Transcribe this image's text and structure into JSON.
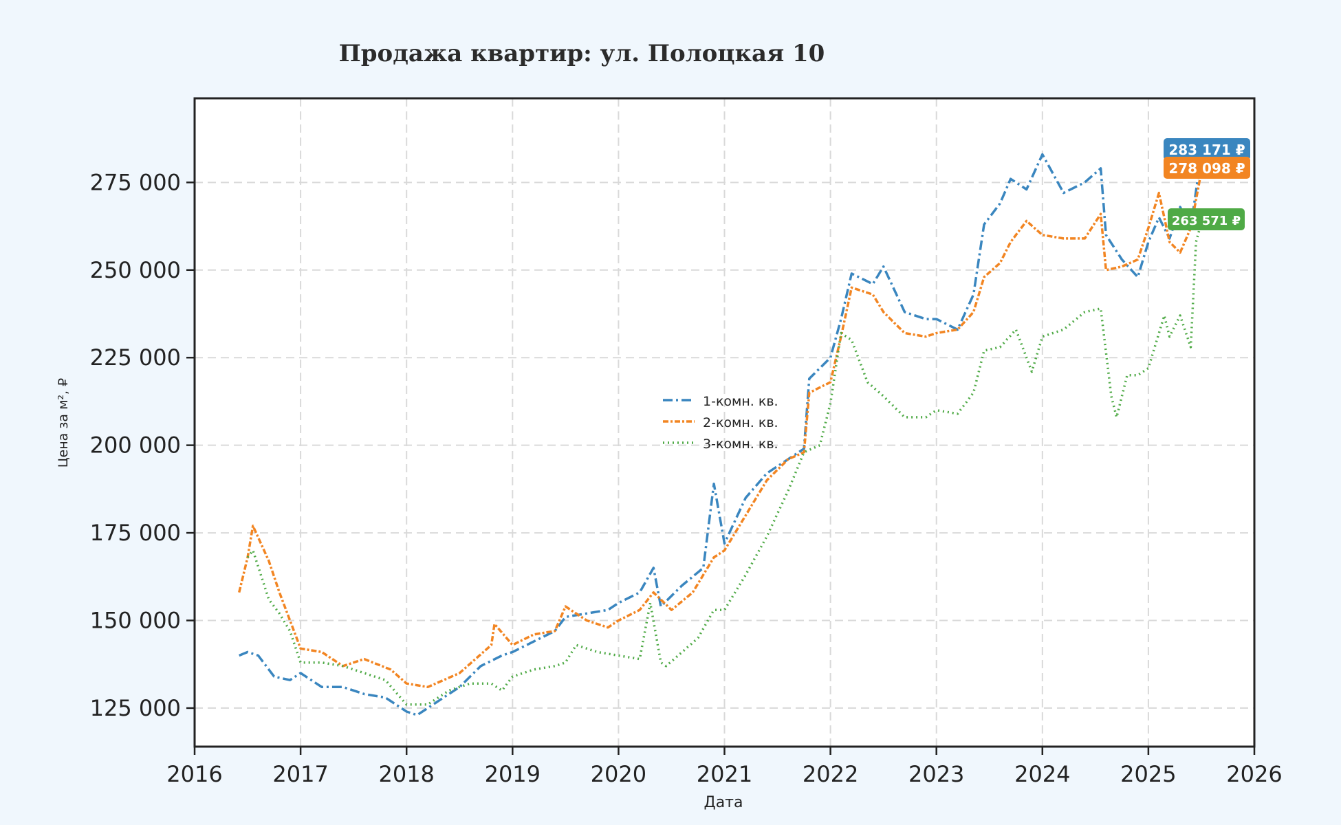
{
  "chart_data": {
    "type": "line",
    "title": "Продажа квартир: ул. Полоцкая 10",
    "xlabel": "Дата",
    "ylabel": "Цена за м², ₽",
    "xlim": [
      2016.0,
      2026.0
    ],
    "ylim": [
      114000,
      299000
    ],
    "x_ticks": [
      2016,
      2017,
      2018,
      2019,
      2020,
      2021,
      2022,
      2023,
      2024,
      2025,
      2026
    ],
    "x_tick_labels": [
      "2016",
      "2017",
      "2018",
      "2019",
      "2020",
      "2021",
      "2022",
      "2023",
      "2024",
      "2025",
      "2026"
    ],
    "y_ticks": [
      125000,
      150000,
      175000,
      200000,
      225000,
      250000,
      275000
    ],
    "y_tick_labels": [
      "125 000",
      "150 000",
      "175 000",
      "200 000",
      "225 000",
      "250 000",
      "275 000"
    ],
    "grid": true,
    "legend_position": "center",
    "series": [
      {
        "name": "1-комн. кв.",
        "color": "#3a86bf",
        "dash": "dashdot",
        "x": [
          2016.42,
          2016.5,
          2016.6,
          2016.75,
          2016.9,
          2017.0,
          2017.2,
          2017.4,
          2017.6,
          2017.8,
          2018.0,
          2018.1,
          2018.3,
          2018.5,
          2018.7,
          2018.9,
          2019.0,
          2019.2,
          2019.4,
          2019.5,
          2019.7,
          2019.9,
          2020.0,
          2020.2,
          2020.33,
          2020.4,
          2020.6,
          2020.8,
          2020.9,
          2021.0,
          2021.2,
          2021.4,
          2021.6,
          2021.75,
          2021.8,
          2022.0,
          2022.1,
          2022.2,
          2022.4,
          2022.5,
          2022.7,
          2022.9,
          2023.0,
          2023.2,
          2023.35,
          2023.45,
          2023.6,
          2023.7,
          2023.85,
          2024.0,
          2024.2,
          2024.4,
          2024.55,
          2024.6,
          2024.75,
          2024.9,
          2025.0,
          2025.1,
          2025.2,
          2025.3,
          2025.4,
          2025.5
        ],
        "values": [
          140000,
          141000,
          140000,
          134000,
          133000,
          135000,
          131000,
          131000,
          129000,
          128000,
          124000,
          123000,
          127000,
          131000,
          137000,
          140000,
          141000,
          144000,
          147000,
          151000,
          152000,
          153000,
          155000,
          158000,
          165000,
          154000,
          160000,
          165000,
          189000,
          172000,
          185000,
          192000,
          196000,
          199000,
          219000,
          225000,
          236000,
          249000,
          246000,
          251000,
          238000,
          236000,
          236000,
          233000,
          243000,
          263000,
          269000,
          276000,
          273000,
          283000,
          272000,
          275000,
          279000,
          260000,
          253000,
          248000,
          258000,
          265000,
          259000,
          268000,
          262000,
          283171
        ]
      },
      {
        "name": "2-комн. кв.",
        "color": "#f28522",
        "dash": "dashdotted-dense",
        "x": [
          2016.42,
          2016.5,
          2016.55,
          2016.7,
          2016.8,
          2016.9,
          2017.0,
          2017.2,
          2017.4,
          2017.6,
          2017.85,
          2018.0,
          2018.2,
          2018.5,
          2018.8,
          2018.83,
          2019.0,
          2019.2,
          2019.4,
          2019.5,
          2019.7,
          2019.9,
          2020.0,
          2020.2,
          2020.33,
          2020.5,
          2020.7,
          2020.9,
          2021.0,
          2021.2,
          2021.4,
          2021.6,
          2021.75,
          2021.8,
          2022.0,
          2022.1,
          2022.2,
          2022.4,
          2022.5,
          2022.7,
          2022.9,
          2023.0,
          2023.2,
          2023.35,
          2023.45,
          2023.6,
          2023.7,
          2023.85,
          2024.0,
          2024.2,
          2024.4,
          2024.55,
          2024.6,
          2024.75,
          2024.9,
          2025.0,
          2025.1,
          2025.2,
          2025.3,
          2025.4,
          2025.5
        ],
        "values": [
          158000,
          168000,
          177000,
          167000,
          158000,
          150000,
          142000,
          141000,
          137000,
          139000,
          136000,
          132000,
          131000,
          135000,
          143000,
          149000,
          143000,
          146000,
          147000,
          154000,
          150000,
          148000,
          150000,
          153000,
          158000,
          153000,
          158000,
          168000,
          170000,
          180000,
          190000,
          196000,
          198000,
          215000,
          218000,
          231000,
          245000,
          243000,
          238000,
          232000,
          231000,
          232000,
          233000,
          238000,
          248000,
          252000,
          258000,
          264000,
          260000,
          259000,
          259000,
          266000,
          250000,
          251000,
          253000,
          262000,
          272000,
          258000,
          255000,
          262000,
          278098
        ]
      },
      {
        "name": "3-комн. кв.",
        "color": "#4faa46",
        "dash": "dotted",
        "x": [
          2016.5,
          2016.55,
          2016.7,
          2016.8,
          2016.9,
          2017.0,
          2017.2,
          2017.4,
          2017.6,
          2017.8,
          2018.0,
          2018.2,
          2018.4,
          2018.6,
          2018.8,
          2018.9,
          2019.0,
          2019.2,
          2019.4,
          2019.5,
          2019.6,
          2019.8,
          2020.0,
          2020.2,
          2020.3,
          2020.4,
          2020.45,
          2020.6,
          2020.75,
          2020.9,
          2021.0,
          2021.2,
          2021.4,
          2021.6,
          2021.75,
          2021.9,
          2022.0,
          2022.1,
          2022.2,
          2022.35,
          2022.5,
          2022.7,
          2022.9,
          2023.0,
          2023.2,
          2023.35,
          2023.45,
          2023.6,
          2023.75,
          2023.9,
          2024.0,
          2024.2,
          2024.4,
          2024.55,
          2024.65,
          2024.7,
          2024.8,
          2024.9,
          2025.0,
          2025.15,
          2025.2,
          2025.3,
          2025.4,
          2025.45,
          2025.5
        ],
        "values": [
          168000,
          170000,
          156000,
          152000,
          147000,
          138000,
          138000,
          137000,
          135000,
          133000,
          126000,
          126000,
          130000,
          132000,
          132000,
          130000,
          134000,
          136000,
          137000,
          138000,
          143000,
          141000,
          140000,
          139000,
          155000,
          138000,
          137000,
          141000,
          145000,
          153000,
          153000,
          163000,
          174000,
          187000,
          198000,
          200000,
          212000,
          232000,
          230000,
          218000,
          214000,
          208000,
          208000,
          210000,
          209000,
          215000,
          227000,
          228000,
          233000,
          221000,
          231000,
          233000,
          238000,
          239000,
          214000,
          208000,
          220000,
          220000,
          222000,
          237000,
          231000,
          237000,
          228000,
          258000,
          263571
        ]
      }
    ],
    "end_labels": [
      "283 171 ₽",
      "278 098 ₽",
      "263 571 ₽"
    ]
  }
}
